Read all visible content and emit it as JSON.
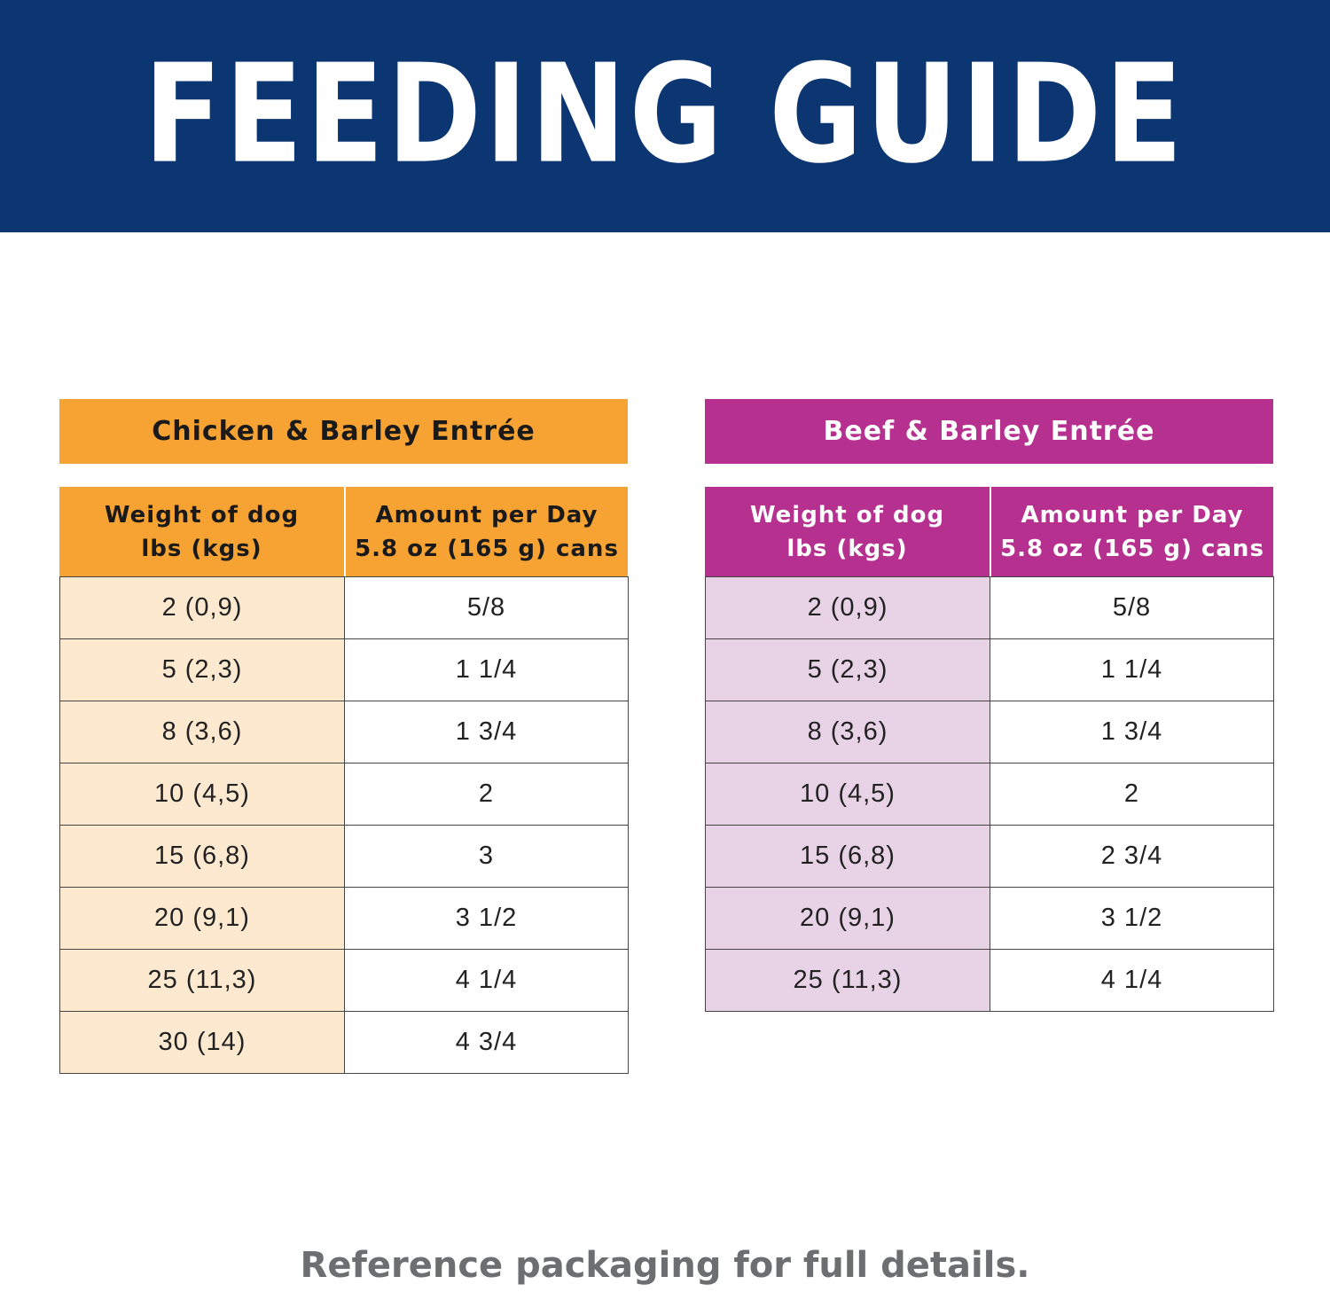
{
  "header": {
    "title": "FEEDING GUIDE"
  },
  "tables": [
    {
      "title": "Chicken & Barley Entrée",
      "headers": [
        [
          "Weight of dog",
          "lbs (kgs)"
        ],
        [
          "Amount per Day",
          "5.8 oz (165 g) cans"
        ]
      ],
      "rows": [
        [
          "2 (0,9)",
          "5/8"
        ],
        [
          "5 (2,3)",
          "1 1/4"
        ],
        [
          "8 (3,6)",
          "1 3/4"
        ],
        [
          "10 (4,5)",
          "2"
        ],
        [
          "15 (6,8)",
          "3"
        ],
        [
          "20 (9,1)",
          "3 1/2"
        ],
        [
          "25 (11,3)",
          "4 1/4"
        ],
        [
          "30 (14)",
          "4 3/4"
        ]
      ]
    },
    {
      "title": "Beef & Barley Entrée",
      "headers": [
        [
          "Weight of dog",
          "lbs (kgs)"
        ],
        [
          "Amount per Day",
          "5.8 oz (165 g) cans"
        ]
      ],
      "rows": [
        [
          "2 (0,9)",
          "5/8"
        ],
        [
          "5 (2,3)",
          "1 1/4"
        ],
        [
          "8 (3,6)",
          "1 3/4"
        ],
        [
          "10 (4,5)",
          "2"
        ],
        [
          "15 (6,8)",
          "2 3/4"
        ],
        [
          "20 (9,1)",
          "3 1/2"
        ],
        [
          "25 (11,3)",
          "4 1/4"
        ]
      ]
    }
  ],
  "footer": {
    "note": "Reference packaging for full details."
  }
}
